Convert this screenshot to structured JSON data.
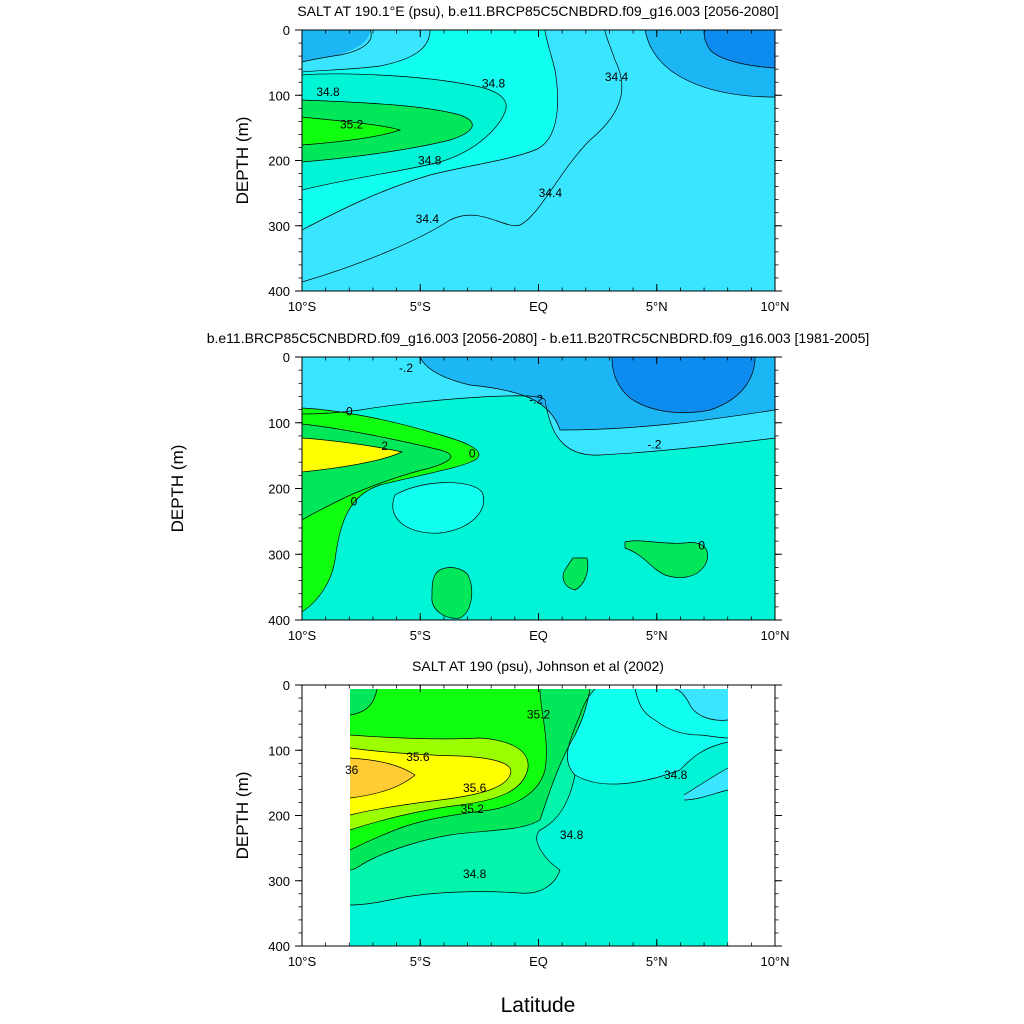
{
  "chart_data": [
    {
      "type": "contour",
      "title": "SALT AT 190.1°E (psu), b.e11.BRCP85C5CNBDRD.f09_g16.003 [2056-2080]",
      "ylabel": "DEPTH (m)",
      "xlim": [
        -10,
        10
      ],
      "ylim": [
        400,
        0
      ],
      "x_ticks": [
        "10°S",
        "5°S",
        "EQ",
        "5°N",
        "10°N"
      ],
      "y_ticks": [
        "0",
        "100",
        "200",
        "300",
        "400"
      ],
      "contour_labels": [
        {
          "lat": -8.9,
          "depth": 95,
          "label": "34.8"
        },
        {
          "lat": -1.9,
          "depth": 82,
          "label": "34.8"
        },
        {
          "lat": -7.9,
          "depth": 145,
          "label": "35.2"
        },
        {
          "lat": -4.6,
          "depth": 200,
          "label": "34.8"
        },
        {
          "lat": 3.3,
          "depth": 72,
          "label": "34.4"
        },
        {
          "lat": 0.5,
          "depth": 250,
          "label": "34.4"
        },
        {
          "lat": -4.7,
          "depth": 290,
          "label": "34.4"
        }
      ]
    },
    {
      "type": "contour",
      "title": "b.e11.BRCP85C5CNBDRD.f09_g16.003 [2056-2080] - b.e11.B20TRC5CNBDRD.f09_g16.003 [1981-2005]",
      "ylabel": "DEPTH (m)",
      "xlim": [
        -10,
        10
      ],
      "ylim": [
        400,
        0
      ],
      "x_ticks": [
        "10°S",
        "5°S",
        "EQ",
        "5°N",
        "10°N"
      ],
      "y_ticks": [
        "0",
        "100",
        "200",
        "300",
        "400"
      ],
      "contour_labels": [
        {
          "lat": -5.6,
          "depth": 17,
          "label": "-.2"
        },
        {
          "lat": -0.1,
          "depth": 65,
          "label": "-.2"
        },
        {
          "lat": -8.0,
          "depth": 83,
          "label": "0"
        },
        {
          "lat": -6.5,
          "depth": 135,
          "label": "2"
        },
        {
          "lat": -2.8,
          "depth": 147,
          "label": "0"
        },
        {
          "lat": 4.9,
          "depth": 133,
          "label": "-.2"
        },
        {
          "lat": -7.8,
          "depth": 220,
          "label": "0"
        },
        {
          "lat": 6.9,
          "depth": 287,
          "label": "0"
        }
      ]
    },
    {
      "type": "contour",
      "title": "SALT AT 190 (psu), Johnson et al (2002)",
      "ylabel": "DEPTH (m)",
      "xlabel": "Latitude",
      "xlim": [
        -10,
        10
      ],
      "ylim": [
        400,
        0
      ],
      "x_ticks": [
        "10°S",
        "5°S",
        "EQ",
        "5°N",
        "10°N"
      ],
      "y_ticks": [
        "0",
        "100",
        "200",
        "300",
        "400"
      ],
      "data_extent_lat": [
        -8,
        8
      ],
      "contour_labels": [
        {
          "lat": 0.0,
          "depth": 45,
          "label": "35.2"
        },
        {
          "lat": -5.1,
          "depth": 110,
          "label": "35.6"
        },
        {
          "lat": -7.9,
          "depth": 130,
          "label": "36"
        },
        {
          "lat": -2.7,
          "depth": 158,
          "label": "35.6"
        },
        {
          "lat": -2.8,
          "depth": 190,
          "label": "35.2"
        },
        {
          "lat": 5.8,
          "depth": 138,
          "label": "34.8"
        },
        {
          "lat": 1.4,
          "depth": 230,
          "label": "34.8"
        },
        {
          "lat": -2.7,
          "depth": 290,
          "label": "34.8"
        }
      ]
    }
  ],
  "colors": {
    "dark_blue": "#0d8cf0",
    "mid_blue": "#1cb6f5",
    "light_blue": "#3ae6ff",
    "cyan": "#11ffee",
    "aqua": "#00f5d6",
    "sea_green": "#02f5aa",
    "green": "#00e85a",
    "bright_green": "#10ff10",
    "lime": "#9bff00",
    "yellow": "#ffff00",
    "orange": "#ffcc33"
  }
}
